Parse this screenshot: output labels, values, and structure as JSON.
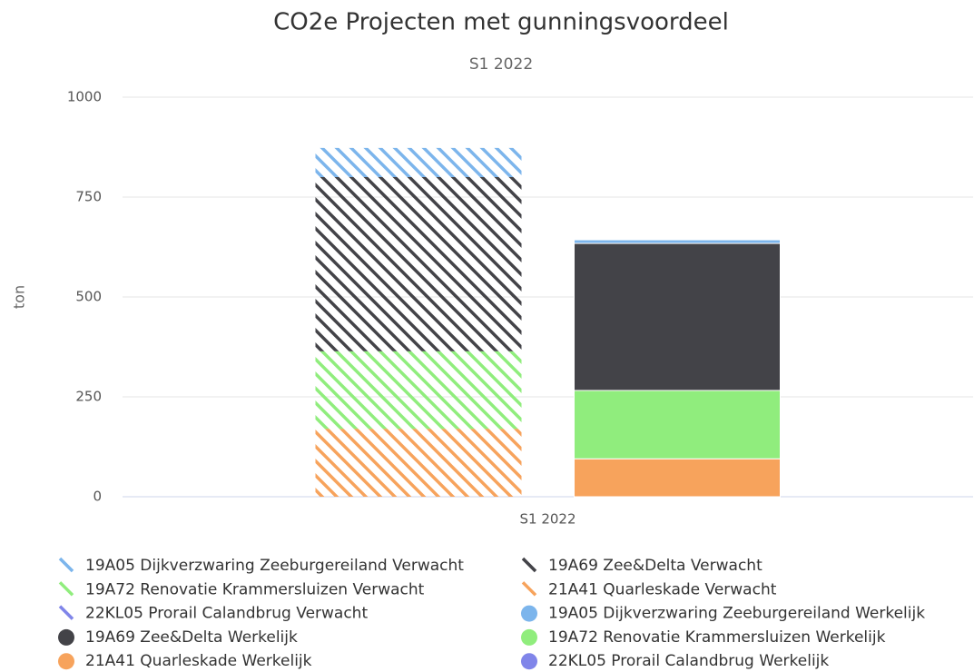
{
  "chart_data": {
    "type": "stacked_bar",
    "title": "CO2e Projecten met gunningsvoordeel",
    "subtitle": "S1 2022",
    "y_label": "ton",
    "categories": [
      "S1 2022"
    ],
    "ylim": [
      0,
      1000
    ],
    "yticks": [
      0,
      250,
      500,
      750,
      1000
    ],
    "grid": true,
    "series": [
      {
        "name": "19A05 Dijkverzwaring Zeeburgereiland Verwacht",
        "color": "#7cb5ec",
        "stack": 0,
        "pattern": true,
        "values": [
          73
        ]
      },
      {
        "name": "19A69 Zee&Delta Verwacht",
        "color": "#434348",
        "stack": 0,
        "pattern": true,
        "values": [
          436
        ]
      },
      {
        "name": "19A72 Renovatie Krammersluizen Verwacht",
        "color": "#90ed7d",
        "stack": 0,
        "pattern": true,
        "values": [
          194
        ]
      },
      {
        "name": "21A41 Quarleskade Verwacht",
        "color": "#f7a35c",
        "stack": 0,
        "pattern": true,
        "values": [
          170
        ]
      },
      {
        "name": "22KL05 Prorail Calandbrug Verwacht",
        "color": "#8085e9",
        "stack": 0,
        "pattern": true,
        "values": [
          0
        ]
      },
      {
        "name": "19A05 Dijkverzwaring Zeeburgereiland Werkelijk",
        "color": "#7cb5ec",
        "stack": 1,
        "pattern": false,
        "values": [
          9
        ]
      },
      {
        "name": "19A69 Zee&Delta Werkelijk",
        "color": "#434348",
        "stack": 1,
        "pattern": false,
        "values": [
          368
        ]
      },
      {
        "name": "19A72 Renovatie Krammersluizen Werkelijk",
        "color": "#90ed7d",
        "stack": 1,
        "pattern": false,
        "values": [
          171
        ]
      },
      {
        "name": "21A41 Quarleskade Werkelijk",
        "color": "#f7a35c",
        "stack": 1,
        "pattern": false,
        "values": [
          95
        ]
      },
      {
        "name": "22KL05 Prorail Calandbrug Werkelijk",
        "color": "#8085e9",
        "stack": 1,
        "pattern": false,
        "values": [
          0
        ]
      }
    ]
  }
}
